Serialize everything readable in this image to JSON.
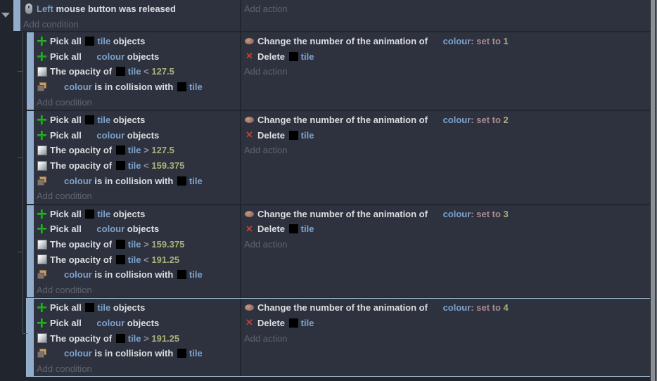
{
  "colors": {
    "page_bg": "#20252e",
    "event_bg": "#2d323e",
    "margin_bar": "#92adcc",
    "selected_border": "#9db7cb",
    "object_text": "#7da2cc",
    "number_text": "#a9b17b",
    "operator_text": "#8d939c",
    "set_to_text": "#ad8a90",
    "muted_text": "#5f656d",
    "plain_text": "#dcdee1",
    "delete_red": "#c2413c",
    "pick_green": "#25a825",
    "tree_line": "#4d535d"
  },
  "root_event": {
    "icon": "mouse-icon",
    "parts": [
      {
        "text": "Left ",
        "style": "param"
      },
      {
        "text": "mouse button was released",
        "style": "plain"
      }
    ],
    "add_condition": "Add condition",
    "add_action": "Add action"
  },
  "events": [
    {
      "selected": false,
      "add_condition": "Add condition",
      "add_action": "Add action",
      "conditions": [
        {
          "icon": "pick-all-icon",
          "parts": [
            {
              "text": "Pick all ",
              "style": "plain"
            },
            {
              "square": true
            },
            {
              "text": "tile",
              "style": "object"
            },
            {
              "text": " objects",
              "style": "plain"
            }
          ]
        },
        {
          "icon": "pick-all-icon",
          "parts": [
            {
              "text": "Pick all ",
              "style": "plain"
            },
            {
              "gap": 18
            },
            {
              "text": "colour",
              "style": "object"
            },
            {
              "text": " objects",
              "style": "plain"
            }
          ]
        },
        {
          "icon": "opacity-icon",
          "parts": [
            {
              "text": "The opacity of ",
              "style": "plain"
            },
            {
              "square": true
            },
            {
              "text": "tile",
              "style": "object"
            },
            {
              "text": " < ",
              "style": "op"
            },
            {
              "text": "127.5",
              "style": "num"
            }
          ]
        },
        {
          "icon": "collision-icon",
          "parts": [
            {
              "gap": 20
            },
            {
              "text": "colour",
              "style": "object"
            },
            {
              "text": " is in collision with ",
              "style": "plain"
            },
            {
              "square": true
            },
            {
              "text": "tile",
              "style": "object"
            }
          ]
        }
      ],
      "actions": [
        {
          "icon": "animation-icon",
          "parts": [
            {
              "text": "Change the number of the animation of ",
              "style": "plain"
            },
            {
              "gap": 18
            },
            {
              "text": "colour",
              "style": "object"
            },
            {
              "text": ": ",
              "style": "set"
            },
            {
              "text": "set to ",
              "style": "set"
            },
            {
              "text": "1",
              "style": "num"
            }
          ]
        },
        {
          "icon": "delete-icon",
          "parts": [
            {
              "text": "Delete ",
              "style": "plain"
            },
            {
              "square": true
            },
            {
              "text": "tile",
              "style": "object"
            }
          ]
        }
      ]
    },
    {
      "selected": false,
      "add_condition": "Add condition",
      "add_action": "Add action",
      "conditions": [
        {
          "icon": "pick-all-icon",
          "parts": [
            {
              "text": "Pick all ",
              "style": "plain"
            },
            {
              "square": true
            },
            {
              "text": "tile",
              "style": "object"
            },
            {
              "text": " objects",
              "style": "plain"
            }
          ]
        },
        {
          "icon": "pick-all-icon",
          "parts": [
            {
              "text": "Pick all ",
              "style": "plain"
            },
            {
              "gap": 18
            },
            {
              "text": "colour",
              "style": "object"
            },
            {
              "text": " objects",
              "style": "plain"
            }
          ]
        },
        {
          "icon": "opacity-icon",
          "parts": [
            {
              "text": "The opacity of ",
              "style": "plain"
            },
            {
              "square": true
            },
            {
              "text": "tile",
              "style": "object"
            },
            {
              "text": " > ",
              "style": "op"
            },
            {
              "text": "127.5",
              "style": "num"
            }
          ]
        },
        {
          "icon": "opacity-icon",
          "parts": [
            {
              "text": "The opacity of ",
              "style": "plain"
            },
            {
              "square": true
            },
            {
              "text": "tile",
              "style": "object"
            },
            {
              "text": " < ",
              "style": "op"
            },
            {
              "text": "159.375",
              "style": "num"
            }
          ]
        },
        {
          "icon": "collision-icon",
          "parts": [
            {
              "gap": 20
            },
            {
              "text": "colour",
              "style": "object"
            },
            {
              "text": " is in collision with ",
              "style": "plain"
            },
            {
              "square": true
            },
            {
              "text": "tile",
              "style": "object"
            }
          ]
        }
      ],
      "actions": [
        {
          "icon": "animation-icon",
          "parts": [
            {
              "text": "Change the number of the animation of ",
              "style": "plain"
            },
            {
              "gap": 18
            },
            {
              "text": "colour",
              "style": "object"
            },
            {
              "text": ": ",
              "style": "set"
            },
            {
              "text": "set to ",
              "style": "set"
            },
            {
              "text": "2",
              "style": "num"
            }
          ]
        },
        {
          "icon": "delete-icon",
          "parts": [
            {
              "text": "Delete ",
              "style": "plain"
            },
            {
              "square": true
            },
            {
              "text": "tile",
              "style": "object"
            }
          ]
        }
      ]
    },
    {
      "selected": false,
      "add_condition": "Add condition",
      "add_action": "Add action",
      "conditions": [
        {
          "icon": "pick-all-icon",
          "parts": [
            {
              "text": "Pick all ",
              "style": "plain"
            },
            {
              "square": true
            },
            {
              "text": "tile",
              "style": "object"
            },
            {
              "text": " objects",
              "style": "plain"
            }
          ]
        },
        {
          "icon": "pick-all-icon",
          "parts": [
            {
              "text": "Pick all ",
              "style": "plain"
            },
            {
              "gap": 18
            },
            {
              "text": "colour",
              "style": "object"
            },
            {
              "text": " objects",
              "style": "plain"
            }
          ]
        },
        {
          "icon": "opacity-icon",
          "parts": [
            {
              "text": "The opacity of ",
              "style": "plain"
            },
            {
              "square": true
            },
            {
              "text": "tile",
              "style": "object"
            },
            {
              "text": " > ",
              "style": "op"
            },
            {
              "text": "159.375",
              "style": "num"
            }
          ]
        },
        {
          "icon": "opacity-icon",
          "parts": [
            {
              "text": "The opacity of ",
              "style": "plain"
            },
            {
              "square": true
            },
            {
              "text": "tile",
              "style": "object"
            },
            {
              "text": " < ",
              "style": "op"
            },
            {
              "text": "191.25",
              "style": "num"
            }
          ]
        },
        {
          "icon": "collision-icon",
          "parts": [
            {
              "gap": 20
            },
            {
              "text": "colour",
              "style": "object"
            },
            {
              "text": " is in collision with ",
              "style": "plain"
            },
            {
              "square": true
            },
            {
              "text": "tile",
              "style": "object"
            }
          ]
        }
      ],
      "actions": [
        {
          "icon": "animation-icon",
          "parts": [
            {
              "text": "Change the number of the animation of ",
              "style": "plain"
            },
            {
              "gap": 18
            },
            {
              "text": "colour",
              "style": "object"
            },
            {
              "text": ": ",
              "style": "set"
            },
            {
              "text": "set to ",
              "style": "set"
            },
            {
              "text": "3",
              "style": "num"
            }
          ]
        },
        {
          "icon": "delete-icon",
          "parts": [
            {
              "text": "Delete ",
              "style": "plain"
            },
            {
              "square": true
            },
            {
              "text": "tile",
              "style": "object"
            }
          ]
        }
      ]
    },
    {
      "selected": true,
      "add_condition": "Add condition",
      "add_action": "Add action",
      "conditions": [
        {
          "icon": "pick-all-icon",
          "parts": [
            {
              "text": "Pick all ",
              "style": "plain"
            },
            {
              "square": true
            },
            {
              "text": "tile",
              "style": "object"
            },
            {
              "text": " objects",
              "style": "plain"
            }
          ]
        },
        {
          "icon": "pick-all-icon",
          "parts": [
            {
              "text": "Pick all ",
              "style": "plain"
            },
            {
              "gap": 18
            },
            {
              "text": "colour",
              "style": "object"
            },
            {
              "text": " objects",
              "style": "plain"
            }
          ]
        },
        {
          "icon": "opacity-icon",
          "parts": [
            {
              "text": "The opacity of ",
              "style": "plain"
            },
            {
              "square": true
            },
            {
              "text": "tile",
              "style": "object"
            },
            {
              "text": " > ",
              "style": "op"
            },
            {
              "text": "191.25",
              "style": "num"
            }
          ]
        },
        {
          "icon": "collision-icon",
          "parts": [
            {
              "gap": 20
            },
            {
              "text": "colour",
              "style": "object"
            },
            {
              "text": " is in collision with ",
              "style": "plain"
            },
            {
              "square": true
            },
            {
              "text": "tile",
              "style": "object"
            }
          ]
        }
      ],
      "actions": [
        {
          "icon": "animation-icon",
          "parts": [
            {
              "text": "Change the number of the animation of ",
              "style": "plain"
            },
            {
              "gap": 18
            },
            {
              "text": "colour",
              "style": "object"
            },
            {
              "text": ": ",
              "style": "set"
            },
            {
              "text": "set to ",
              "style": "set"
            },
            {
              "text": "4",
              "style": "num"
            }
          ]
        },
        {
          "icon": "delete-icon",
          "parts": [
            {
              "text": "Delete ",
              "style": "plain"
            },
            {
              "square": true
            },
            {
              "text": "tile",
              "style": "object"
            }
          ]
        }
      ]
    }
  ]
}
